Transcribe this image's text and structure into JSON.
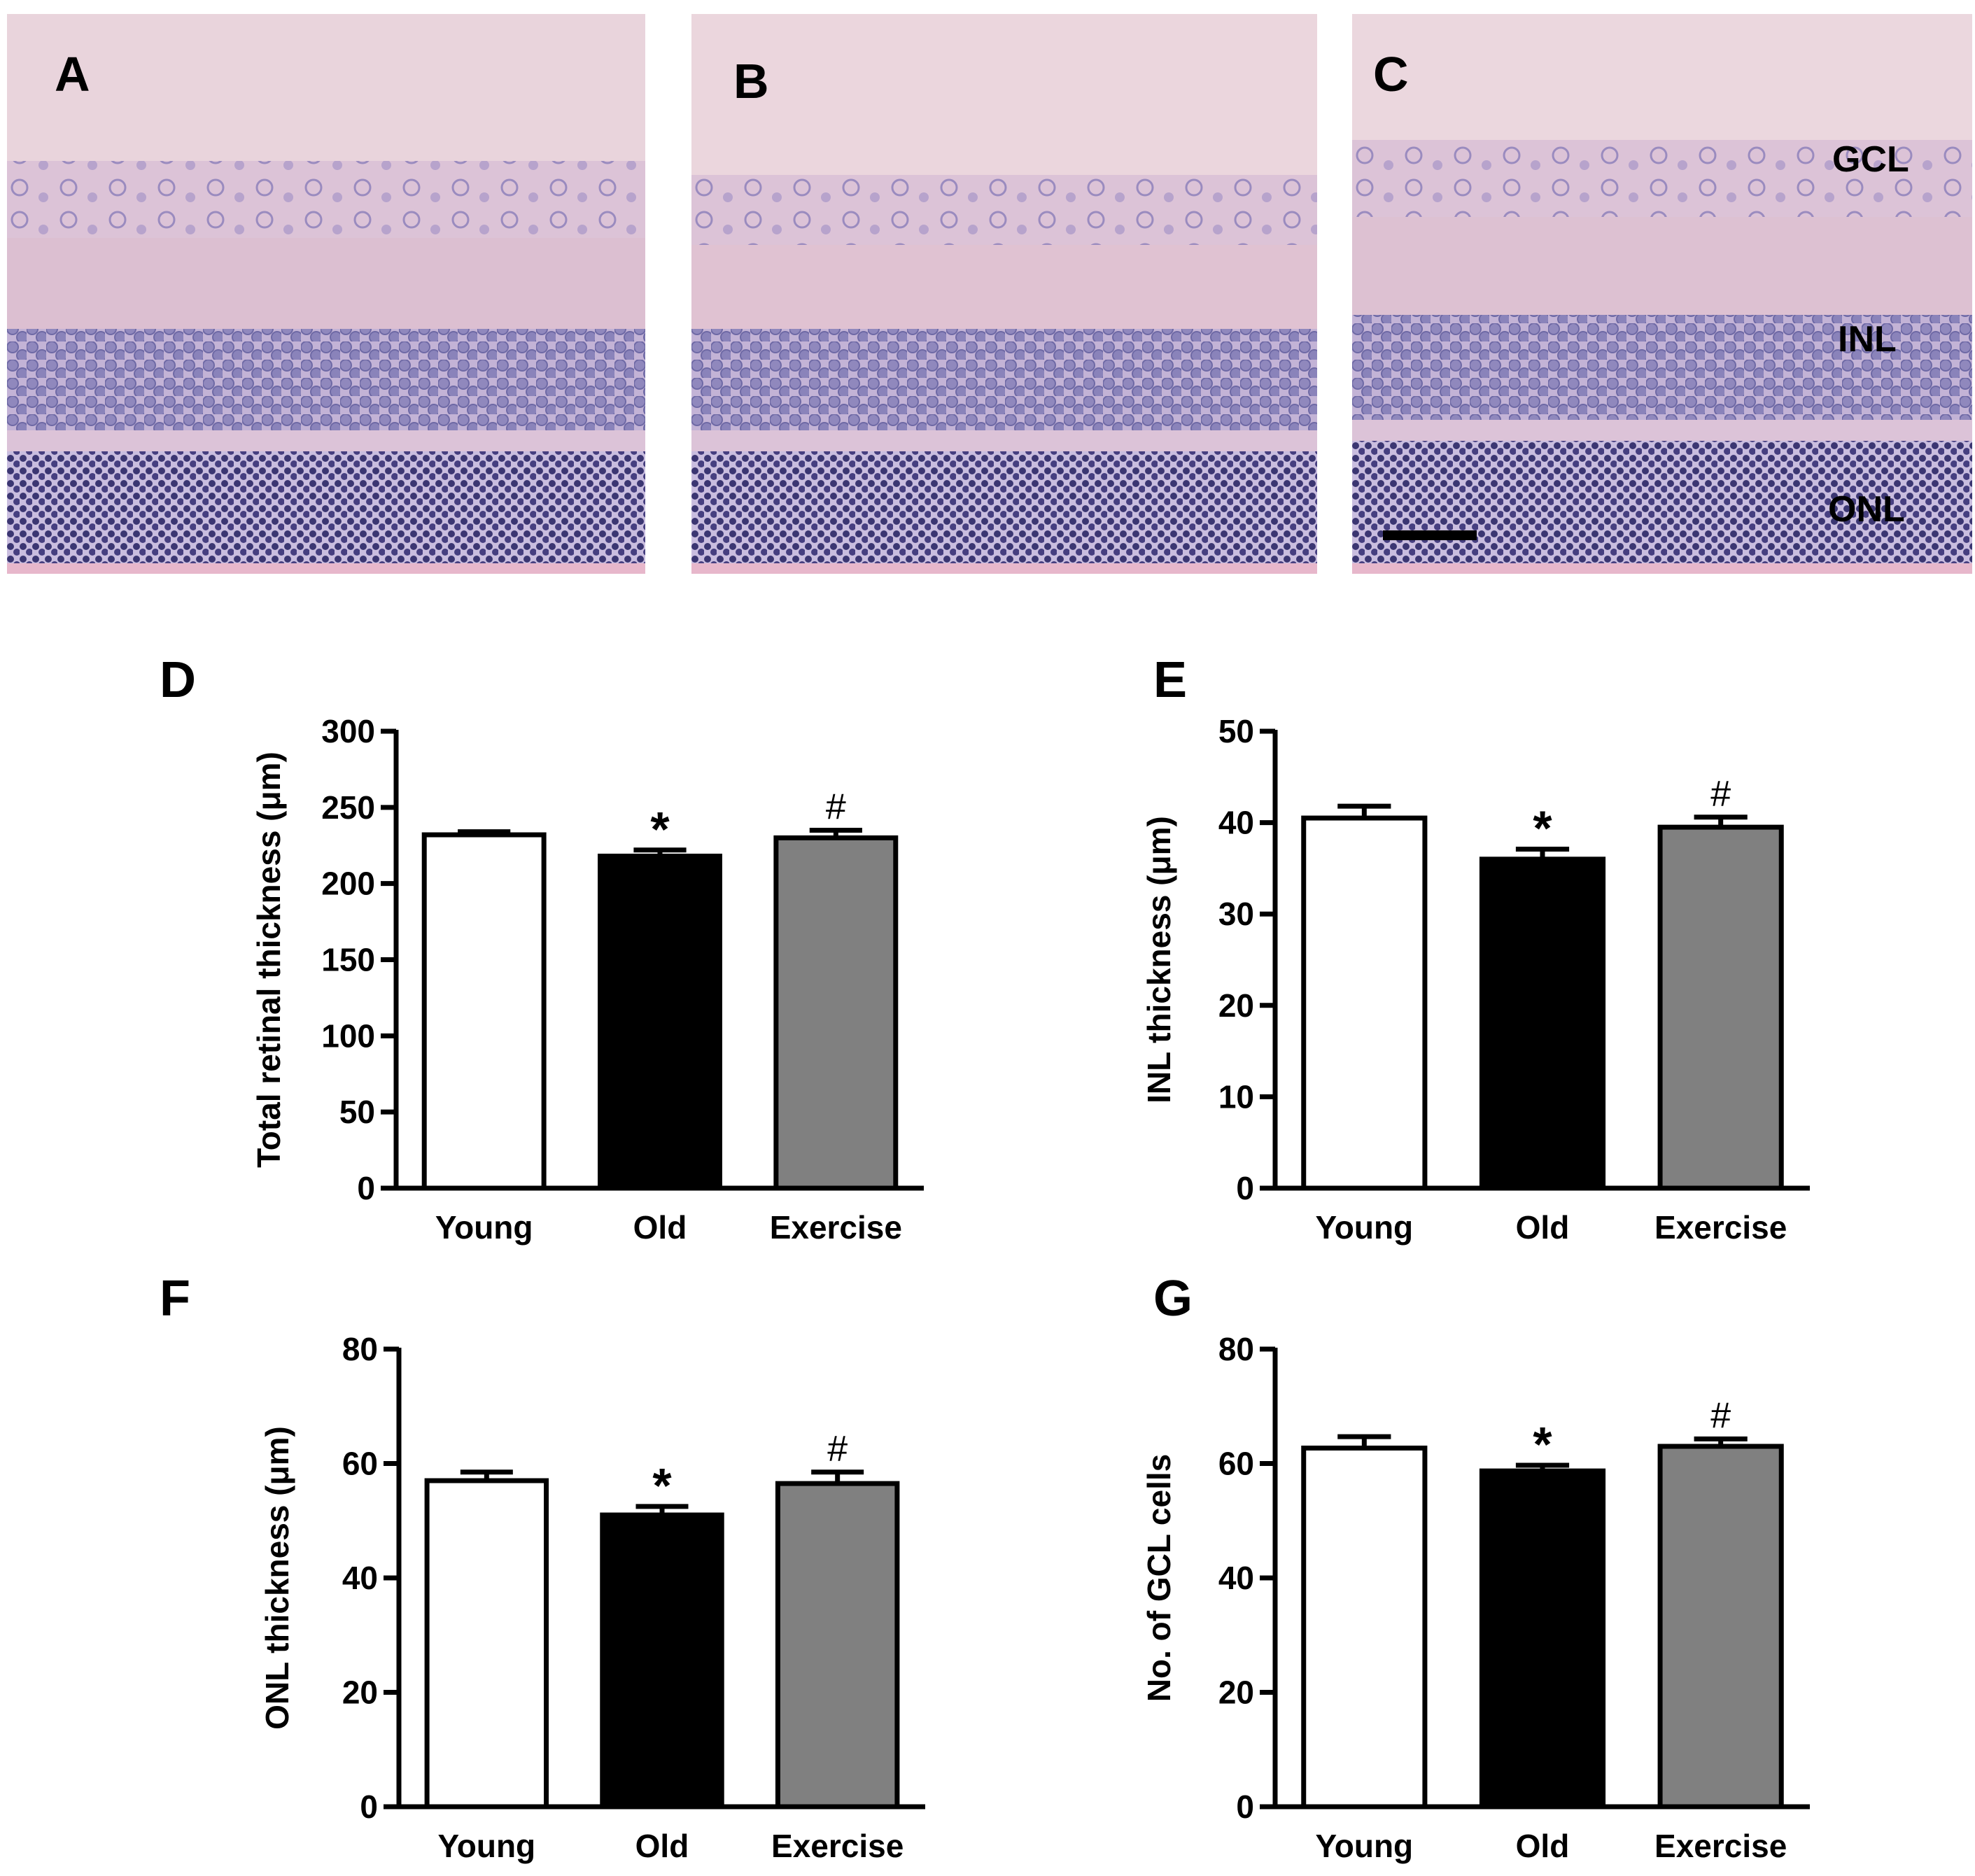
{
  "panel_labels": {
    "a": "A",
    "b": "B",
    "c": "C",
    "d": "D",
    "e": "E",
    "f": "F",
    "g": "G"
  },
  "layer_labels": {
    "gcl": "GCL",
    "inl": "INL",
    "onl": "ONL"
  },
  "colors": {
    "young": "#ffffff",
    "old": "#000000",
    "exercise": "#808080",
    "tissue_background": "#e9d4dc",
    "stroma": "#d9b2c6",
    "nuclei_inl": "#8b86b8",
    "nuclei_onl": "#3f3b78",
    "scale_bar": "#000000"
  },
  "histology": [
    {
      "panel": "A",
      "image": "H&E retinal cross-section, young"
    },
    {
      "panel": "B",
      "image": "H&E retinal cross-section, old"
    },
    {
      "panel": "C",
      "image": "H&E retinal cross-section, exercise"
    }
  ],
  "chart_data": [
    {
      "panel": "D",
      "type": "bar",
      "categories": [
        "Young",
        "Old",
        "Exercise"
      ],
      "values": [
        232,
        218,
        230
      ],
      "errors": [
        2,
        4,
        5
      ],
      "annotations": [
        "",
        "*",
        "#"
      ],
      "ylabel": "Total retinal thickness (μm)",
      "ylim": [
        0,
        300
      ],
      "yticks": [
        0,
        50,
        100,
        150,
        200,
        250,
        300
      ],
      "ytick_labels": [
        "0",
        "50",
        "100",
        "150",
        "200",
        "250",
        "300"
      ],
      "bar_colors": [
        "#ffffff",
        "#000000",
        "#808080"
      ]
    },
    {
      "panel": "E",
      "type": "bar",
      "categories": [
        "Young",
        "Old",
        "Exercise"
      ],
      "values": [
        40.5,
        36,
        39.5
      ],
      "errors": [
        1.3,
        1.1,
        1.1
      ],
      "annotations": [
        "",
        "*",
        "#"
      ],
      "ylabel": "INL thickness (μm)",
      "ylim": [
        0,
        50
      ],
      "yticks": [
        0,
        10,
        20,
        30,
        40,
        50
      ],
      "ytick_labels": [
        "0",
        "10",
        "20",
        "30",
        "40",
        "50"
      ],
      "bar_colors": [
        "#ffffff",
        "#000000",
        "#808080"
      ]
    },
    {
      "panel": "F",
      "type": "bar",
      "categories": [
        "Young",
        "Old",
        "Exercise"
      ],
      "values": [
        57,
        51,
        56.5
      ],
      "errors": [
        1.5,
        1.5,
        2
      ],
      "annotations": [
        "",
        "*",
        "#"
      ],
      "ylabel": "ONL thickness (μm)",
      "ylim": [
        0,
        80
      ],
      "yticks": [
        0,
        20,
        40,
        60,
        80
      ],
      "ytick_labels": [
        "0",
        "20",
        "40",
        "60",
        "80"
      ],
      "bar_colors": [
        "#ffffff",
        "#000000",
        "#808080"
      ]
    },
    {
      "panel": "G",
      "type": "bar",
      "categories": [
        "Young",
        "Old",
        "Exercise"
      ],
      "values": [
        62.7,
        58.7,
        63
      ],
      "errors": [
        2,
        1,
        1.3
      ],
      "annotations": [
        "",
        "*",
        "#"
      ],
      "ylabel": "No. of GCL cells",
      "ylim": [
        0,
        80
      ],
      "yticks": [
        0,
        20,
        40,
        60,
        80
      ],
      "ytick_labels": [
        "0",
        "20",
        "40",
        "60",
        "80"
      ],
      "bar_colors": [
        "#ffffff",
        "#000000",
        "#808080"
      ]
    }
  ]
}
